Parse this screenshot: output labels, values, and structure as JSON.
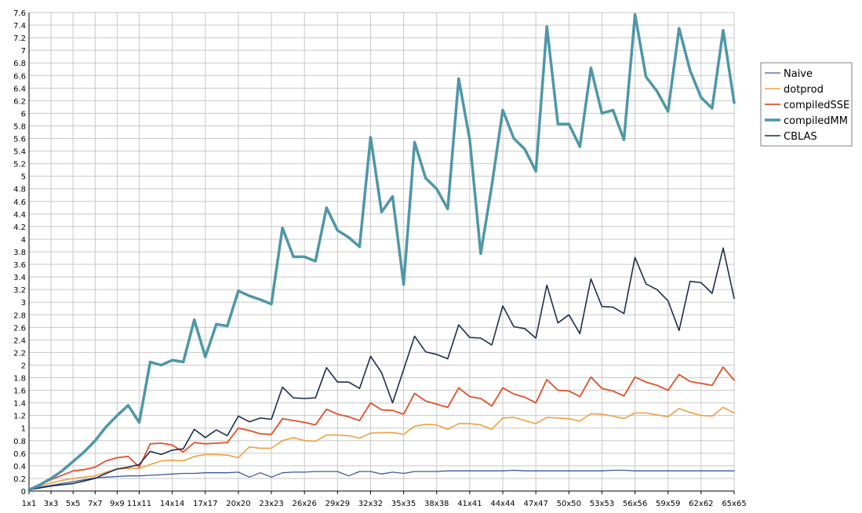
{
  "chart_data": {
    "type": "line",
    "x_tick_labels": [
      "1x1",
      "3x3",
      "5x5",
      "7x7",
      "9x9",
      "11x11",
      "14x14",
      "17x17",
      "20x20",
      "23x23",
      "26x26",
      "29x29",
      "32x32",
      "35x35",
      "38x38",
      "41x41",
      "44x44",
      "47x47",
      "50x50",
      "53x53",
      "56x56",
      "59x59",
      "62x62",
      "65x65"
    ],
    "x": [
      "1x1",
      "2x2",
      "3x3",
      "4x4",
      "5x5",
      "6x6",
      "7x7",
      "8x8",
      "9x9",
      "10x10",
      "11x11",
      "12x12",
      "13x13",
      "14x14",
      "15x15",
      "16x16",
      "17x17",
      "18x18",
      "19x19",
      "20x20",
      "21x21",
      "22x22",
      "23x23",
      "24x24",
      "25x25",
      "26x26",
      "27x27",
      "28x28",
      "29x29",
      "30x30",
      "31x31",
      "32x32",
      "33x33",
      "34x34",
      "35x35",
      "36x36",
      "37x37",
      "38x38",
      "39x39",
      "40x40",
      "41x41",
      "42x42",
      "43x43",
      "44x44",
      "45x45",
      "46x46",
      "47x47",
      "48x48",
      "49x49",
      "50x50",
      "51x51",
      "52x52",
      "53x53",
      "54x54",
      "55x55",
      "56x56",
      "57x57",
      "58x58",
      "59x59",
      "60x60",
      "61x61",
      "62x62",
      "63x63",
      "64x64",
      "65x65"
    ],
    "ylim": [
      0,
      7.6
    ],
    "y_ticks": [
      "0",
      "0.2",
      "0.4",
      "0.6",
      "0.8",
      "1",
      "1.2",
      "1.4",
      "1.6",
      "1.8",
      "2",
      "2.2",
      "2.4",
      "2.6",
      "2.8",
      "3",
      "3.2",
      "3.4",
      "3.6",
      "3.8",
      "4",
      "4.2",
      "4.4",
      "4.6",
      "4.8",
      "5",
      "5.2",
      "5.4",
      "5.6",
      "5.8",
      "6",
      "6.2",
      "6.4",
      "6.6",
      "6.8",
      "7",
      "7.2",
      "7.4",
      "7.6"
    ],
    "grid": true,
    "legend_position": "right",
    "series": [
      {
        "name": "Naive",
        "color": "#3a5a9a",
        "width": 1.3,
        "values": [
          0.02,
          0.06,
          0.09,
          0.12,
          0.15,
          0.18,
          0.21,
          0.22,
          0.23,
          0.24,
          0.24,
          0.25,
          0.26,
          0.27,
          0.28,
          0.28,
          0.29,
          0.29,
          0.29,
          0.3,
          0.22,
          0.29,
          0.22,
          0.29,
          0.3,
          0.3,
          0.31,
          0.31,
          0.31,
          0.24,
          0.31,
          0.31,
          0.27,
          0.3,
          0.28,
          0.31,
          0.31,
          0.31,
          0.32,
          0.32,
          0.32,
          0.32,
          0.32,
          0.32,
          0.33,
          0.32,
          0.32,
          0.32,
          0.32,
          0.32,
          0.32,
          0.32,
          0.32,
          0.33,
          0.33,
          0.32,
          0.32,
          0.32,
          0.32,
          0.32,
          0.32,
          0.32,
          0.32,
          0.32,
          0.32
        ]
      },
      {
        "name": "dotprod",
        "color": "#f0a040",
        "width": 1.6,
        "values": [
          0.02,
          0.08,
          0.13,
          0.17,
          0.2,
          0.22,
          0.24,
          0.3,
          0.35,
          0.36,
          0.36,
          0.42,
          0.48,
          0.49,
          0.48,
          0.55,
          0.58,
          0.58,
          0.57,
          0.53,
          0.7,
          0.68,
          0.68,
          0.8,
          0.85,
          0.8,
          0.79,
          0.89,
          0.89,
          0.88,
          0.84,
          0.92,
          0.93,
          0.93,
          0.9,
          1.03,
          1.06,
          1.05,
          0.98,
          1.07,
          1.07,
          1.05,
          0.98,
          1.16,
          1.17,
          1.12,
          1.07,
          1.17,
          1.16,
          1.15,
          1.11,
          1.23,
          1.22,
          1.19,
          1.15,
          1.24,
          1.24,
          1.21,
          1.18,
          1.31,
          1.25,
          1.2,
          1.19,
          1.33,
          1.24
        ]
      },
      {
        "name": "compiledSSE",
        "color": "#e0502a",
        "width": 1.8,
        "values": [
          0.02,
          0.1,
          0.18,
          0.25,
          0.32,
          0.34,
          0.38,
          0.48,
          0.53,
          0.55,
          0.38,
          0.75,
          0.76,
          0.73,
          0.62,
          0.77,
          0.75,
          0.76,
          0.77,
          1.0,
          0.96,
          0.91,
          0.9,
          1.15,
          1.12,
          1.09,
          1.05,
          1.3,
          1.22,
          1.18,
          1.12,
          1.4,
          1.29,
          1.28,
          1.22,
          1.55,
          1.43,
          1.38,
          1.33,
          1.64,
          1.5,
          1.47,
          1.35,
          1.64,
          1.54,
          1.49,
          1.4,
          1.77,
          1.6,
          1.59,
          1.5,
          1.81,
          1.63,
          1.59,
          1.51,
          1.81,
          1.73,
          1.68,
          1.6,
          1.85,
          1.74,
          1.71,
          1.68,
          1.97,
          1.76
        ]
      },
      {
        "name": "compiledMM",
        "color": "#4e97a8",
        "width": 3.5,
        "values": [
          0.02,
          0.1,
          0.2,
          0.32,
          0.47,
          0.62,
          0.8,
          1.02,
          1.2,
          1.36,
          1.09,
          2.05,
          2.0,
          2.08,
          2.05,
          2.72,
          2.13,
          2.65,
          2.62,
          3.18,
          3.1,
          3.04,
          2.97,
          4.18,
          3.72,
          3.72,
          3.65,
          4.5,
          4.14,
          4.03,
          3.88,
          5.62,
          4.43,
          4.68,
          3.28,
          5.54,
          4.97,
          4.8,
          4.48,
          6.55,
          5.58,
          3.77,
          4.85,
          6.05,
          5.6,
          5.43,
          5.08,
          7.38,
          5.83,
          5.83,
          5.47,
          6.72,
          6.0,
          6.05,
          5.58,
          7.57,
          6.58,
          6.35,
          6.03,
          7.35,
          6.68,
          6.25,
          6.08,
          7.32,
          6.17
        ]
      },
      {
        "name": "CBLAS",
        "color": "#1c2f4e",
        "width": 1.6,
        "values": [
          0.02,
          0.05,
          0.08,
          0.1,
          0.12,
          0.16,
          0.2,
          0.28,
          0.35,
          0.38,
          0.42,
          0.63,
          0.58,
          0.65,
          0.67,
          0.98,
          0.85,
          0.97,
          0.88,
          1.19,
          1.1,
          1.16,
          1.14,
          1.65,
          1.48,
          1.47,
          1.48,
          1.96,
          1.73,
          1.73,
          1.63,
          2.14,
          1.88,
          1.4,
          1.93,
          2.46,
          2.21,
          2.17,
          2.1,
          2.64,
          2.44,
          2.43,
          2.32,
          2.94,
          2.61,
          2.58,
          2.43,
          3.27,
          2.67,
          2.8,
          2.5,
          3.37,
          2.93,
          2.92,
          2.82,
          3.71,
          3.29,
          3.2,
          3.02,
          2.55,
          3.33,
          3.31,
          3.14,
          3.86,
          3.06
        ]
      }
    ]
  }
}
